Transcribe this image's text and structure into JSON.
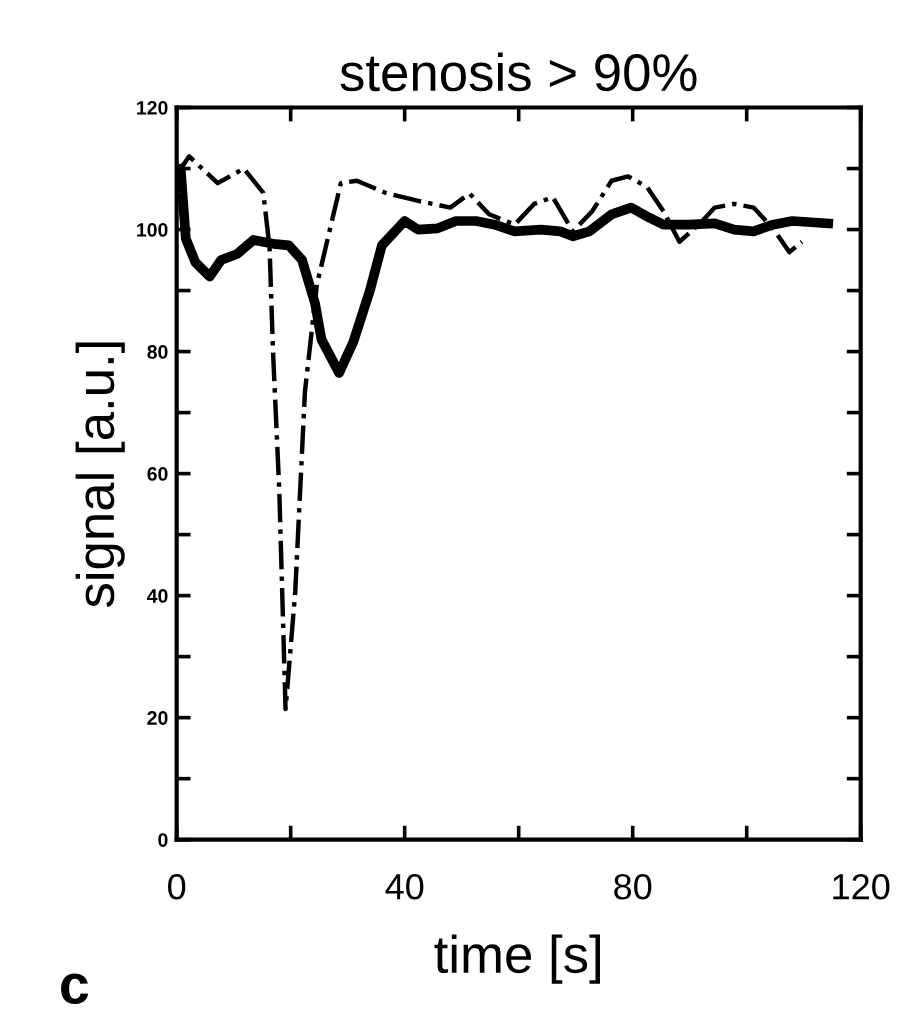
{
  "chart_data": {
    "type": "line",
    "title": "stenosis > 90%",
    "xlabel": "time [s]",
    "ylabel": "signal [a.u.]",
    "annotations": [
      "c"
    ],
    "xlim": [
      0,
      120
    ],
    "ylim": [
      0,
      120
    ],
    "xticks": [
      0,
      {
        "value": 20,
        "label": null
      },
      40,
      {
        "value": 60,
        "label": null
      },
      80,
      {
        "value": 100,
        "label": null
      },
      120
    ],
    "yticks": [
      0,
      {
        "value": 10,
        "label": null
      },
      20,
      {
        "value": 30,
        "label": null
      },
      40,
      {
        "value": 50,
        "label": null
      },
      60,
      {
        "value": 70,
        "label": null
      },
      80,
      {
        "value": 90,
        "label": null
      },
      100,
      {
        "value": 110,
        "label": null
      },
      120
    ],
    "grid": false,
    "legend": false,
    "marker": "none",
    "series": [
      {
        "color": "#000000",
        "line_style": "solid",
        "x": [
          0,
          0.7,
          1.6,
          3.3,
          5.8,
          7.8,
          10.6,
          13.5,
          17.4,
          19.7,
          22,
          24.3,
          25.4,
          28.5,
          31,
          33.9,
          36,
          40,
          42.3,
          45.8,
          49,
          52.5,
          55.8,
          59.3,
          63.9,
          67.3,
          69.5,
          72.4,
          76.3,
          79.7,
          83,
          85.4,
          89.9,
          94.4,
          97.8,
          101.2,
          104.6,
          108,
          114.3
        ],
        "values": [
          107,
          110,
          98.5,
          94.6,
          92.3,
          95,
          96,
          98.3,
          97.6,
          97.4,
          95,
          87.8,
          82,
          76.5,
          81.6,
          90,
          97.4,
          101.4,
          100,
          100.2,
          101.4,
          101.4,
          100.8,
          99.7,
          100,
          99.7,
          98.9,
          99.7,
          102.5,
          103.6,
          101.9,
          100.8,
          100.8,
          101,
          100,
          99.7,
          100.8,
          101.4,
          101
        ]
      },
      {
        "color": "#000000",
        "line_style": "dashdot",
        "x": [
          0,
          2.2,
          7.2,
          11.8,
          15.2,
          16.3,
          16.9,
          18,
          19.1,
          20.8,
          22.5,
          24.6,
          28.8,
          31.6,
          36.7,
          42.4,
          48,
          51.4,
          54.8,
          59.3,
          62.7,
          66,
          69.5,
          72.9,
          76.3,
          79.2,
          82.5,
          85.4,
          88.2,
          91.6,
          94.4,
          97.8,
          101.2,
          104.6,
          107.5,
          109.7
        ],
        "values": [
          109,
          112,
          107.6,
          110,
          106,
          97,
          80,
          57.3,
          21.4,
          40.6,
          73.4,
          91,
          107.6,
          108,
          106,
          104.7,
          103.6,
          105.9,
          102.5,
          100.8,
          104.2,
          105.3,
          99.7,
          103,
          108,
          108.7,
          107,
          103,
          98,
          100.8,
          103.6,
          104.2,
          103.6,
          100.2,
          96.3,
          98
        ]
      }
    ]
  }
}
